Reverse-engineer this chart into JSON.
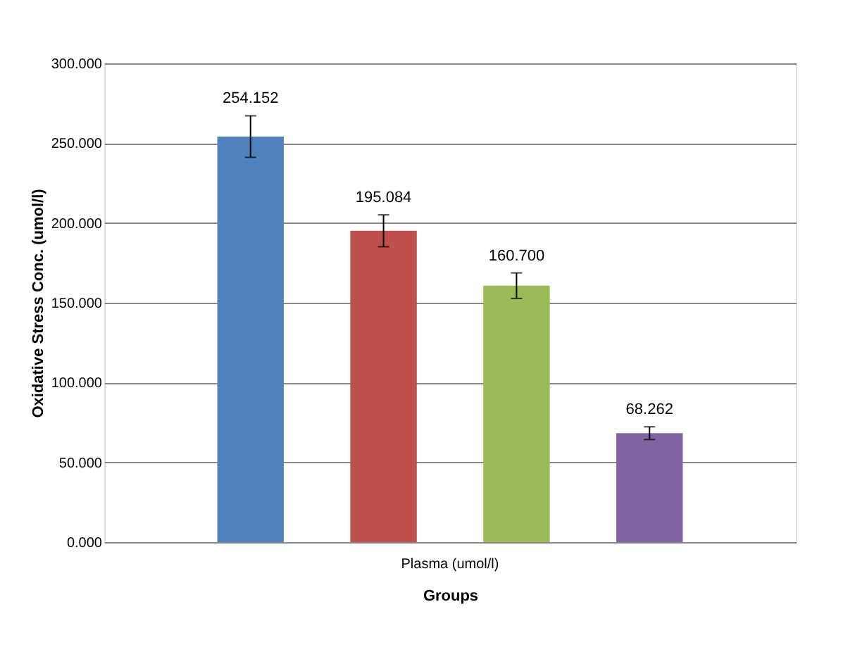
{
  "chart_data": {
    "type": "bar",
    "xlabel": "Groups",
    "ylabel": "Oxidative Stress Conc. (umol/l)",
    "categories": [
      "Plasma (umol/l)"
    ],
    "series": [
      {
        "color": "#4f81bd",
        "values": [
          254.152
        ],
        "errors": [
          13
        ],
        "value_labels": [
          "254.152"
        ]
      },
      {
        "color": "#c0504d",
        "values": [
          195.084
        ],
        "errors": [
          10
        ],
        "value_labels": [
          "195.084"
        ]
      },
      {
        "color": "#9bbb59",
        "values": [
          160.7
        ],
        "errors": [
          8
        ],
        "value_labels": [
          "160.700"
        ]
      },
      {
        "color": "#8064a2",
        "values": [
          68.262
        ],
        "errors": [
          4
        ],
        "value_labels": [
          "68.262"
        ]
      }
    ],
    "ylim": [
      0,
      300
    ],
    "yticks": [
      {
        "value": 0,
        "label": "0.000"
      },
      {
        "value": 50,
        "label": "50.000"
      },
      {
        "value": 100,
        "label": "100.000"
      },
      {
        "value": 150,
        "label": "150.000"
      },
      {
        "value": 200,
        "label": "200.000"
      },
      {
        "value": 250,
        "label": "250.000"
      },
      {
        "value": 300,
        "label": "300.000"
      }
    ],
    "grid": "y"
  }
}
